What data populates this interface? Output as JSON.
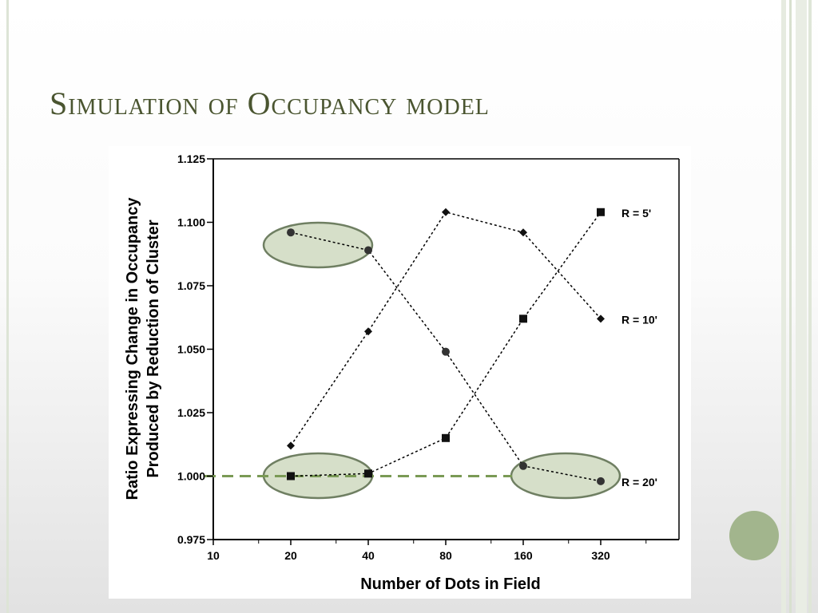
{
  "slide": {
    "title": "Simulation of Occupancy model",
    "accent_color": "#a2b58d",
    "title_color": "#4a5530"
  },
  "chart_data": {
    "type": "line",
    "xlabel": "Number of Dots in Field",
    "ylabel_line1": "Ratio Expressing Change in  Occupancy",
    "ylabel_line2": "Produced by Reduction of Cluster",
    "x_tick_labels": [
      "10",
      "20",
      "40",
      "80",
      "160",
      "320"
    ],
    "x_scale": "log2",
    "y_ticks": [
      "0.975",
      "1.000",
      "1.025",
      "1.050",
      "1.075",
      "1.100",
      "1.125"
    ],
    "ylim": [
      0.975,
      1.125
    ],
    "x": [
      20,
      40,
      80,
      160,
      320
    ],
    "series": [
      {
        "name": "R = 5'",
        "marker": "square",
        "values": [
          1.0,
          1.001,
          1.015,
          1.062,
          1.104
        ]
      },
      {
        "name": "R = 10'",
        "marker": "diamond",
        "values": [
          1.012,
          1.057,
          1.104,
          1.096,
          1.062
        ]
      },
      {
        "name": "R = 20'",
        "marker": "circle",
        "values": [
          1.096,
          1.089,
          1.049,
          1.004,
          0.998
        ]
      }
    ],
    "highlight_ellipse_color": "#d6dfc9",
    "reference_line": {
      "y": 1.0,
      "color": "#7a9a55"
    }
  }
}
